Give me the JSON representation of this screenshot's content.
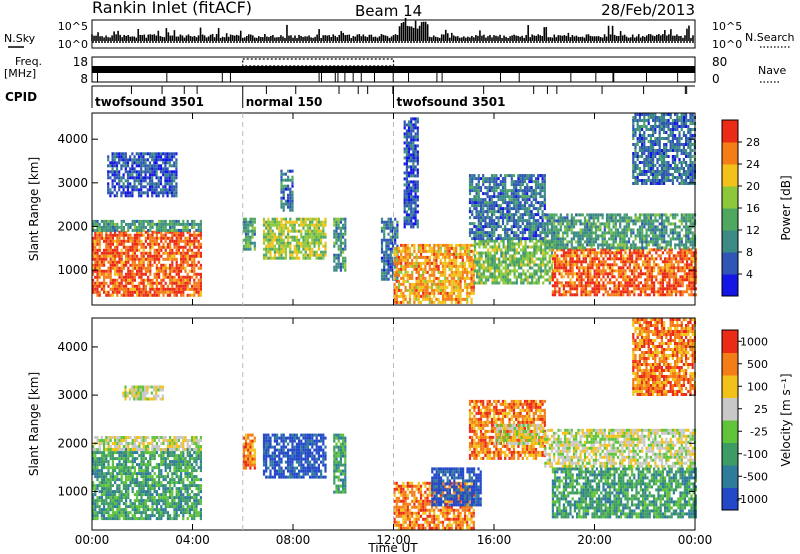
{
  "header": {
    "title": "Rankin Inlet (fitACF)",
    "beam": "Beam 14",
    "date": "28/Feb/2013"
  },
  "status": {
    "nsky_label": "N.Sky",
    "nsky_ticks": [
      "10^5",
      "10^0"
    ],
    "nsearch_label": "N.Search",
    "nsearch_ticks": [
      "10^5",
      "10^0"
    ],
    "freq_label": "Freq.",
    "freq_unit": "[MHz]",
    "freq_ticks": [
      "18",
      "8"
    ],
    "nave_label": "Nave",
    "nave_ticks": [
      "80",
      "0"
    ],
    "cpid_label": "CPID",
    "cpid_segments": [
      {
        "label": "twofsound 3501",
        "start_hour": 0,
        "end_hour": 6
      },
      {
        "label": "normal 150",
        "start_hour": 6,
        "end_hour": 12
      },
      {
        "label": "twofsound 3501",
        "start_hour": 12,
        "end_hour": 24
      }
    ]
  },
  "chart_data": [
    {
      "type": "heatmap",
      "name": "power",
      "ylabel": "Slant Range [km]",
      "ylim": [
        200,
        4600
      ],
      "yticks": [
        1000,
        2000,
        3000,
        4000
      ],
      "xlim": [
        0,
        24
      ],
      "colorbar": {
        "label": "Power [dB]",
        "ticks": [
          4,
          8,
          12,
          16,
          20,
          24,
          28
        ],
        "range": [
          0,
          32
        ],
        "colors": [
          "#1515e6",
          "#2f55b5",
          "#3c8a85",
          "#4fa860",
          "#8cc83a",
          "#f2c21a",
          "#f47d17",
          "#ec2b16"
        ]
      },
      "echo_regions": [
        {
          "t0": 0.0,
          "t1": 4.3,
          "r0": 450,
          "r1": 1900,
          "level": 28
        },
        {
          "t0": 0.0,
          "t1": 4.3,
          "r0": 1900,
          "r1": 2150,
          "level": 12
        },
        {
          "t0": 0.6,
          "t1": 3.4,
          "r0": 2700,
          "r1": 3700,
          "level": 6
        },
        {
          "t0": 6.0,
          "t1": 6.5,
          "r0": 1500,
          "r1": 2200,
          "level": 12
        },
        {
          "t0": 6.8,
          "t1": 9.3,
          "r0": 1300,
          "r1": 2200,
          "level": 18
        },
        {
          "t0": 7.5,
          "t1": 8.0,
          "r0": 2400,
          "r1": 3300,
          "level": 8
        },
        {
          "t0": 9.6,
          "t1": 10.1,
          "r0": 1000,
          "r1": 2200,
          "level": 12
        },
        {
          "t0": 11.5,
          "t1": 12.2,
          "r0": 800,
          "r1": 2200,
          "level": 8
        },
        {
          "t0": 12.0,
          "t1": 15.2,
          "r0": 250,
          "r1": 1600,
          "level": 24
        },
        {
          "t0": 12.4,
          "t1": 13.0,
          "r0": 2000,
          "r1": 4500,
          "level": 6
        },
        {
          "t0": 15.2,
          "t1": 18.3,
          "r0": 700,
          "r1": 1700,
          "level": 16
        },
        {
          "t0": 15.0,
          "t1": 18.0,
          "r0": 1700,
          "r1": 3200,
          "level": 8
        },
        {
          "t0": 18.3,
          "t1": 24.0,
          "r0": 450,
          "r1": 1500,
          "level": 28
        },
        {
          "t0": 18.0,
          "t1": 24.0,
          "r0": 1500,
          "r1": 2300,
          "level": 12
        },
        {
          "t0": 21.5,
          "t1": 24.0,
          "r0": 3000,
          "r1": 4600,
          "level": 8
        }
      ]
    },
    {
      "type": "heatmap",
      "name": "velocity",
      "ylabel": "Slant Range [km]",
      "xlabel": "Time UT",
      "ylim": [
        200,
        4600
      ],
      "yticks": [
        1000,
        2000,
        3000,
        4000
      ],
      "xlim": [
        0,
        24
      ],
      "xticks": [
        "00:00",
        "04:00",
        "08:00",
        "12:00",
        "16:00",
        "20:00",
        "00:00"
      ],
      "colorbar": {
        "label": "Velocity [m s⁻¹]",
        "ticks": [
          "1000",
          "500",
          "100",
          "25",
          "-25",
          "-100",
          "-500",
          "-1000"
        ],
        "colors": [
          "#2348c8",
          "#2f7b9a",
          "#3d9c63",
          "#5fc43a",
          "#c8c8c8",
          "#f2c21a",
          "#f47d17",
          "#ec2b16"
        ]
      },
      "echo_regions": [
        {
          "t0": 0.0,
          "t1": 4.3,
          "r0": 450,
          "r1": 1900,
          "level": 2
        },
        {
          "t0": 0.0,
          "t1": 4.3,
          "r0": 1900,
          "r1": 2150,
          "level": 4
        },
        {
          "t0": 1.2,
          "t1": 2.8,
          "r0": 2900,
          "r1": 3200,
          "level": 4
        },
        {
          "t0": 6.0,
          "t1": 6.5,
          "r0": 1500,
          "r1": 2200,
          "level": 6
        },
        {
          "t0": 6.8,
          "t1": 9.3,
          "r0": 1300,
          "r1": 2200,
          "level": 0
        },
        {
          "t0": 9.6,
          "t1": 10.1,
          "r0": 1000,
          "r1": 2200,
          "level": 2
        },
        {
          "t0": 12.0,
          "t1": 15.2,
          "r0": 250,
          "r1": 1200,
          "level": 6
        },
        {
          "t0": 13.5,
          "t1": 15.5,
          "r0": 700,
          "r1": 1500,
          "level": 0
        },
        {
          "t0": 15.0,
          "t1": 18.0,
          "r0": 1700,
          "r1": 2900,
          "level": 6
        },
        {
          "t0": 16.0,
          "t1": 18.0,
          "r0": 2000,
          "r1": 2400,
          "level": 4
        },
        {
          "t0": 18.3,
          "t1": 24.0,
          "r0": 450,
          "r1": 1500,
          "level": 2
        },
        {
          "t0": 18.0,
          "t1": 24.0,
          "r0": 1500,
          "r1": 2300,
          "level": 4
        },
        {
          "t0": 21.5,
          "t1": 24.0,
          "r0": 3000,
          "r1": 4600,
          "level": 6
        }
      ]
    }
  ]
}
